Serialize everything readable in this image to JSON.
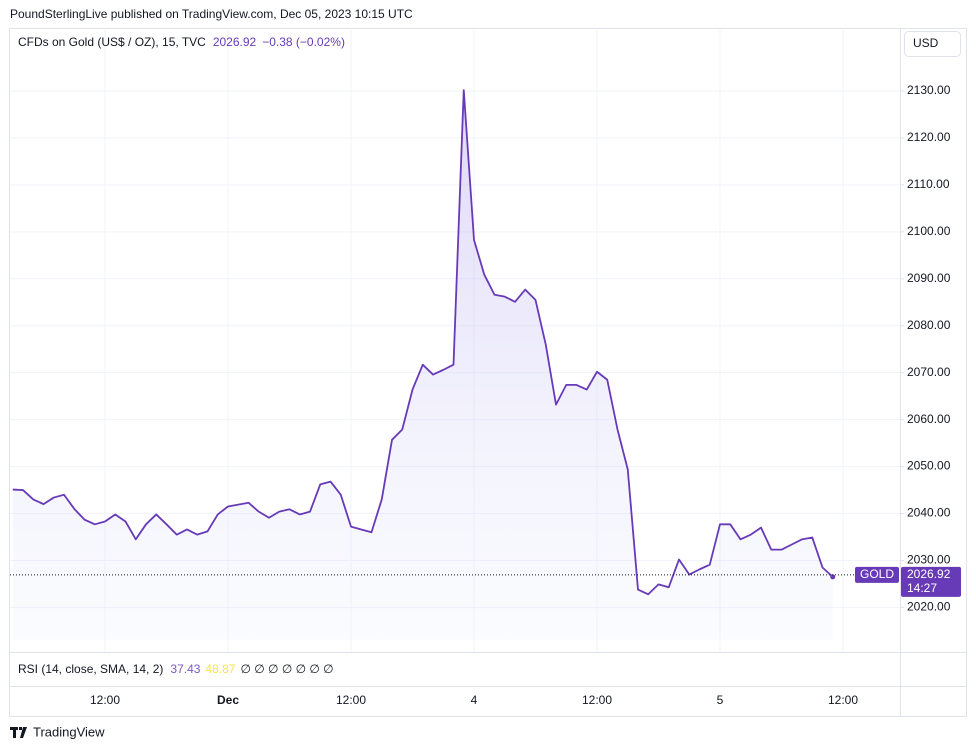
{
  "header": {
    "title": "PoundSterlingLive published on TradingView.com, Dec 05, 2023 10:15 UTC"
  },
  "chart_data": {
    "type": "line",
    "title": "CFDs on Gold (US$ / OZ), 15, TVC",
    "last_price": 2026.92,
    "change": "−0.38 (−0.02%)",
    "currency": "USD",
    "symbol": "GOLD",
    "countdown": "14:27",
    "color": "#673ab7",
    "grid": true,
    "categories": [
      null,
      null,
      null,
      null,
      null,
      null,
      null,
      null,
      null,
      "12:00",
      null,
      null,
      null,
      null,
      null,
      null,
      null,
      null,
      null,
      null,
      null,
      "Dec",
      null,
      null,
      null,
      null,
      null,
      null,
      null,
      null,
      null,
      null,
      null,
      "12:00",
      null,
      null,
      null,
      null,
      null,
      null,
      null,
      null,
      null,
      null,
      null,
      "4",
      null,
      null,
      null,
      null,
      null,
      null,
      null,
      null,
      null,
      null,
      null,
      "12:00",
      null,
      null,
      null,
      null,
      null,
      null,
      null,
      null,
      null,
      null,
      null,
      "5",
      null,
      null,
      null,
      null,
      null,
      null,
      null,
      null,
      null,
      null,
      null,
      "12:00"
    ],
    "values": [
      2045.1,
      2045,
      2043,
      2042,
      2043.4,
      2044,
      2041,
      2038.7,
      2037.7,
      2038.3,
      2039.8,
      2038.3,
      2034.5,
      2037.7,
      2039.8,
      2037.7,
      2035.5,
      2036.6,
      2035.5,
      2036.2,
      2039.8,
      2041.5,
      2041.9,
      2042.3,
      2040.4,
      2039.1,
      2040.4,
      2040.9,
      2039.8,
      2040.4,
      2046.2,
      2046.8,
      2044,
      2037.2,
      2036.6,
      2036,
      2043,
      2055.7,
      2057.9,
      2066.4,
      2071.7,
      2069.6,
      2070.6,
      2071.7,
      2130.2,
      2098.3,
      2090.9,
      2086.6,
      2086.2,
      2085.1,
      2087.7,
      2085.5,
      2076,
      2063.2,
      2067.4,
      2067.4,
      2066.4,
      2070.2,
      2068.5,
      2057.9,
      2049.4,
      2023.8,
      2022.8,
      2024.9,
      2024.3,
      2030.2,
      2027,
      2028.1,
      2029.1,
      2037.7,
      2037.7,
      2034.5,
      2035.5,
      2037,
      2032.3,
      2032.3,
      2033.4,
      2034.5,
      2034.9,
      2028.5,
      2026.5,
      null
    ],
    "ylim": [
      2010.5,
      2143
    ],
    "yticks": [
      {
        "value": 2020,
        "label": "2020.00"
      },
      {
        "value": 2030,
        "label": "2030.00"
      },
      {
        "value": 2040,
        "label": "2040.00"
      },
      {
        "value": 2050,
        "label": "2050.00"
      },
      {
        "value": 2060,
        "label": "2060.00"
      },
      {
        "value": 2070,
        "label": "2070.00"
      },
      {
        "value": 2080,
        "label": "2080.00"
      },
      {
        "value": 2090,
        "label": "2090.00"
      },
      {
        "value": 2100,
        "label": "2100.00"
      },
      {
        "value": 2110,
        "label": "2110.00"
      },
      {
        "value": 2120,
        "label": "2120.00"
      },
      {
        "value": 2130,
        "label": "2130.00"
      }
    ],
    "rsi": {
      "label": "RSI (14, close, SMA, 14, 2)",
      "value": 37.43,
      "sma": 48.87,
      "rsi_color": "#7e57c2",
      "sma_color": "#f7e34a",
      "empty": "∅ ∅ ∅ ∅ ∅ ∅ ∅"
    }
  },
  "footer": {
    "brand": "TradingView"
  }
}
